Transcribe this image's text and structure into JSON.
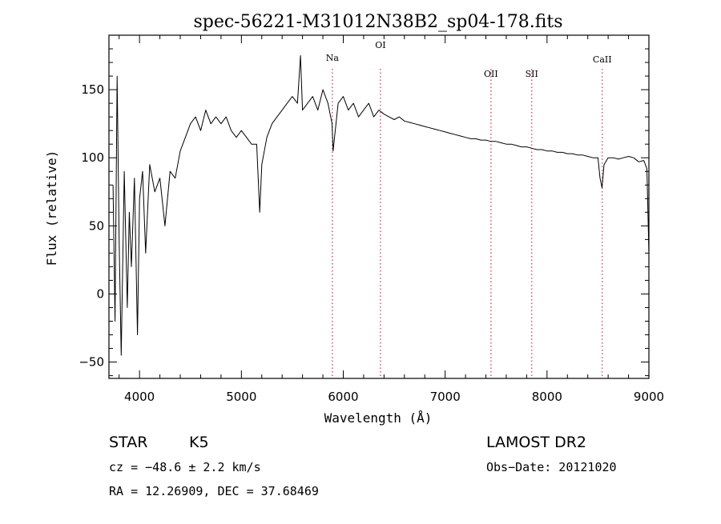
{
  "chart_data": {
    "type": "line",
    "title": "spec-56221-M31012N38B2_sp04-178.fits",
    "xlabel": "Wavelength (Å)",
    "ylabel": "Flux (relative)",
    "xlim": [
      3700,
      9000
    ],
    "ylim": [
      -62,
      190
    ],
    "x_ticks": [
      4000,
      5000,
      6000,
      7000,
      8000,
      9000
    ],
    "y_ticks": [
      -50,
      0,
      50,
      100,
      150
    ],
    "x_tick_labels": [
      "4000",
      "5000",
      "6000",
      "7000",
      "8000",
      "9000"
    ],
    "y_tick_labels": [
      "−50",
      "0",
      "50",
      "100",
      "150"
    ],
    "series": [
      {
        "x": [
          3740,
          3760,
          3780,
          3800,
          3820,
          3850,
          3880,
          3900,
          3920,
          3950,
          3980,
          4000,
          4030,
          4060,
          4100,
          4150,
          4200,
          4250,
          4300,
          4350,
          4400,
          4450,
          4500,
          4550,
          4600,
          4650,
          4700,
          4750,
          4800,
          4850,
          4900,
          4950,
          5000,
          5050,
          5100,
          5150,
          5180,
          5200,
          5250,
          5300,
          5350,
          5400,
          5450,
          5500,
          5550,
          5580,
          5600,
          5650,
          5700,
          5750,
          5800,
          5850,
          5890,
          5900,
          5950,
          6000,
          6050,
          6100,
          6150,
          6200,
          6250,
          6300,
          6350,
          6400,
          6450,
          6500,
          6550,
          6600,
          6650,
          6700,
          6750,
          6800,
          6850,
          6900,
          6950,
          7000,
          7050,
          7100,
          7150,
          7200,
          7250,
          7300,
          7350,
          7400,
          7450,
          7500,
          7550,
          7600,
          7650,
          7700,
          7750,
          7800,
          7850,
          7900,
          7950,
          8000,
          8050,
          8100,
          8150,
          8200,
          8250,
          8300,
          8350,
          8400,
          8450,
          8500,
          8520,
          8540,
          8560,
          8600,
          8650,
          8700,
          8750,
          8800,
          8850,
          8900,
          8950,
          8980,
          9000
        ],
        "y": [
          80,
          -20,
          160,
          40,
          -45,
          90,
          -10,
          60,
          20,
          85,
          -30,
          70,
          90,
          30,
          95,
          75,
          85,
          50,
          90,
          85,
          105,
          115,
          125,
          130,
          120,
          135,
          125,
          130,
          125,
          130,
          120,
          115,
          120,
          115,
          110,
          110,
          60,
          95,
          115,
          125,
          130,
          135,
          140,
          145,
          140,
          175,
          135,
          140,
          145,
          135,
          150,
          140,
          125,
          105,
          140,
          145,
          135,
          140,
          130,
          135,
          140,
          130,
          135,
          132,
          130,
          128,
          130,
          127,
          126,
          125,
          124,
          123,
          122,
          121,
          120,
          119,
          118,
          117,
          116,
          115,
          114,
          114,
          113,
          113,
          112,
          112,
          111,
          110,
          110,
          109,
          108,
          108,
          107,
          106,
          106,
          105,
          105,
          104,
          104,
          103,
          103,
          102,
          102,
          101,
          100,
          100,
          85,
          78,
          95,
          100,
          100,
          99,
          100,
          101,
          100,
          97,
          98,
          92,
          30
        ]
      }
    ],
    "spectral_lines": [
      {
        "label": "Na",
        "wavelength": 5893
      },
      {
        "label": "OI",
        "wavelength": 6365
      },
      {
        "label": "OII",
        "wavelength": 7450
      },
      {
        "label": "SII",
        "wavelength": 7850
      },
      {
        "label": "CaII",
        "wavelength": 8542
      }
    ]
  },
  "footer": {
    "class": "STAR",
    "subclass": "K5",
    "survey": "LAMOST DR2",
    "cz": "cz = −48.6 ± 2.2 km/s",
    "obs_date": "Obs−Date: 20121020",
    "coords": "RA =  12.26909, DEC =  37.68469"
  },
  "colors": {
    "line": "#000000",
    "marker": "#cc3333"
  }
}
